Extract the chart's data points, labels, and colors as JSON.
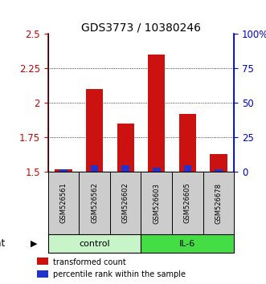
{
  "title": "GDS3773 / 10380246",
  "samples": [
    "GSM526561",
    "GSM526562",
    "GSM526602",
    "GSM526603",
    "GSM526605",
    "GSM526678"
  ],
  "red_values": [
    1.52,
    2.1,
    1.85,
    2.35,
    1.92,
    1.63
  ],
  "blue_values_pct": [
    2,
    5,
    5,
    3,
    5,
    2
  ],
  "ylim": [
    1.5,
    2.5
  ],
  "yticks": [
    1.5,
    1.75,
    2.0,
    2.25,
    2.5
  ],
  "ytick_labels": [
    "1.5",
    "1.75",
    "2",
    "2.25",
    "2.5"
  ],
  "right_yticks": [
    0,
    25,
    50,
    75,
    100
  ],
  "right_yticklabels": [
    "0",
    "25",
    "50",
    "75",
    "100%"
  ],
  "groups": [
    {
      "label": "control",
      "indices": [
        0,
        1,
        2
      ],
      "color": "#c8f5c8"
    },
    {
      "label": "IL-6",
      "indices": [
        3,
        4,
        5
      ],
      "color": "#44dd44"
    }
  ],
  "red_color": "#cc1111",
  "blue_color": "#2233cc",
  "left_tick_color": "#cc0000",
  "right_tick_color": "#0000cc",
  "sample_box_color": "#cccccc",
  "bar_width": 0.55
}
